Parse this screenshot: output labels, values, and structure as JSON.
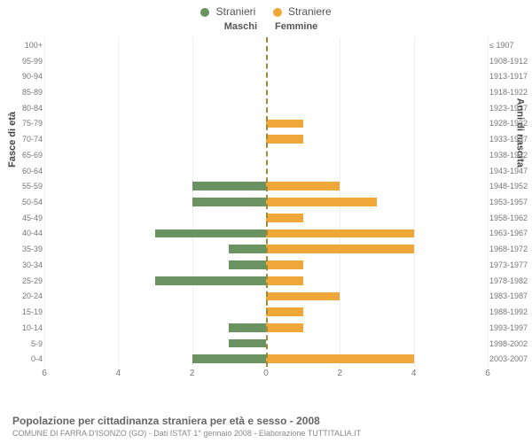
{
  "legend": {
    "male": {
      "label": "Stranieri",
      "color": "#6b9362"
    },
    "female": {
      "label": "Straniere",
      "color": "#f0a73a"
    }
  },
  "columns": {
    "left": "Maschi",
    "right": "Femmine"
  },
  "axes": {
    "left": "Fasce di età",
    "right": "Anni di nascita"
  },
  "xmax": 6,
  "xticks_left": [
    6,
    4,
    2,
    0
  ],
  "xticks_right": [
    0,
    2,
    4,
    6
  ],
  "grid_at": [
    2,
    4,
    6
  ],
  "grid_color": "#eeeeee",
  "centerline_color": "#9a8a3a",
  "rows": [
    {
      "age": "100+",
      "years": "≤ 1907",
      "m": 0,
      "f": 0
    },
    {
      "age": "95-99",
      "years": "1908-1912",
      "m": 0,
      "f": 0
    },
    {
      "age": "90-94",
      "years": "1913-1917",
      "m": 0,
      "f": 0
    },
    {
      "age": "85-89",
      "years": "1918-1922",
      "m": 0,
      "f": 0
    },
    {
      "age": "80-84",
      "years": "1923-1927",
      "m": 0,
      "f": 0
    },
    {
      "age": "75-79",
      "years": "1928-1932",
      "m": 0,
      "f": 1
    },
    {
      "age": "70-74",
      "years": "1933-1937",
      "m": 0,
      "f": 1
    },
    {
      "age": "65-69",
      "years": "1938-1942",
      "m": 0,
      "f": 0
    },
    {
      "age": "60-64",
      "years": "1943-1947",
      "m": 0,
      "f": 0
    },
    {
      "age": "55-59",
      "years": "1948-1952",
      "m": 2,
      "f": 2
    },
    {
      "age": "50-54",
      "years": "1953-1957",
      "m": 2,
      "f": 3
    },
    {
      "age": "45-49",
      "years": "1958-1962",
      "m": 0,
      "f": 1
    },
    {
      "age": "40-44",
      "years": "1963-1967",
      "m": 3,
      "f": 4
    },
    {
      "age": "35-39",
      "years": "1968-1972",
      "m": 1,
      "f": 4
    },
    {
      "age": "30-34",
      "years": "1973-1977",
      "m": 1,
      "f": 1
    },
    {
      "age": "25-29",
      "years": "1978-1982",
      "m": 3,
      "f": 1
    },
    {
      "age": "20-24",
      "years": "1983-1987",
      "m": 0,
      "f": 2
    },
    {
      "age": "15-19",
      "years": "1988-1992",
      "m": 0,
      "f": 1
    },
    {
      "age": "10-14",
      "years": "1993-1997",
      "m": 1,
      "f": 1
    },
    {
      "age": "5-9",
      "years": "1998-2002",
      "m": 1,
      "f": 0
    },
    {
      "age": "0-4",
      "years": "2003-2007",
      "m": 2,
      "f": 4
    }
  ],
  "footer": {
    "title": "Popolazione per cittadinanza straniera per età e sesso - 2008",
    "subtitle": "COMUNE DI FARRA D'ISONZO (GO) - Dati ISTAT 1° gennaio 2008 - Elaborazione TUTTITALIA.IT"
  }
}
